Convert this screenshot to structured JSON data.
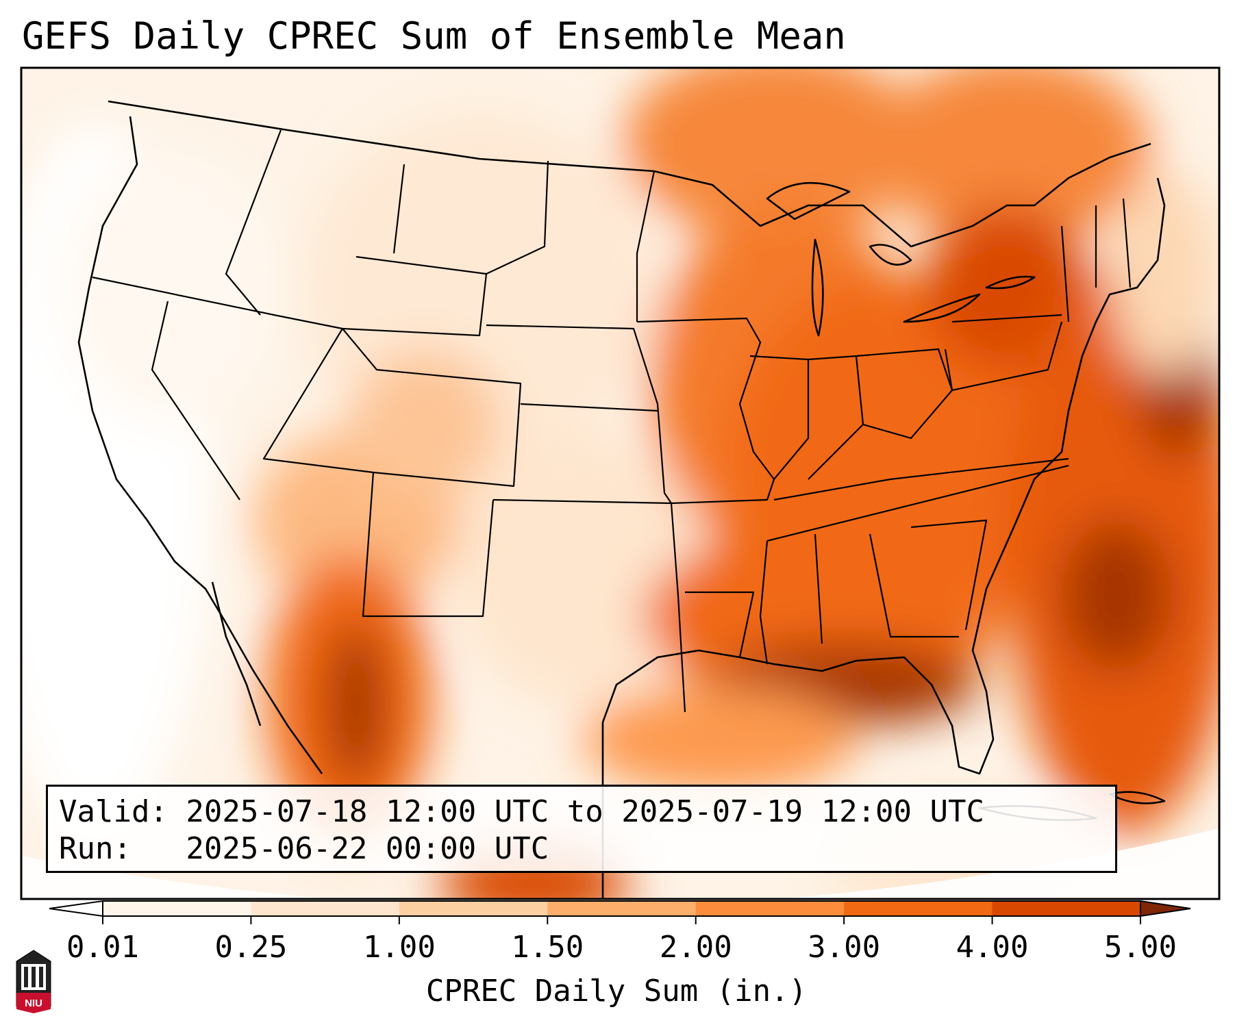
{
  "title": "GEFS Daily CPREC Sum of Ensemble Mean",
  "info": {
    "valid_line": "Valid: 2025-07-18 12:00 UTC to 2025-07-19 12:00 UTC",
    "run_line": "Run:   2025-06-22 00:00 UTC"
  },
  "colorbar": {
    "label": "CPREC Daily Sum (in.)",
    "ticks": [
      "0.01",
      "0.25",
      "1.00",
      "1.50",
      "2.00",
      "3.00",
      "4.00",
      "5.00"
    ],
    "colors": [
      "#fff5eb",
      "#fee6ce",
      "#fdd0a2",
      "#fdae6b",
      "#fd8d3c",
      "#f16913",
      "#d94801",
      "#a63603"
    ],
    "under_color": "#ffffff",
    "over_color": "#7f2704"
  },
  "logo": {
    "text": "NIU"
  }
}
